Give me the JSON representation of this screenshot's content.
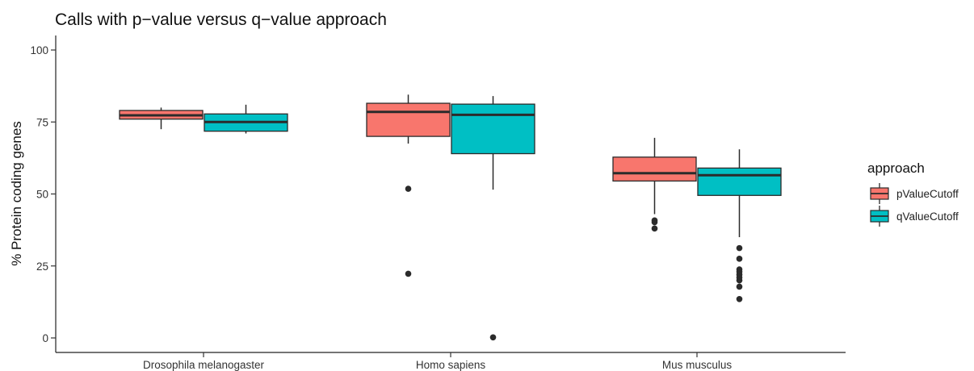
{
  "chart_data": {
    "type": "boxplot",
    "title": "Calls with p−value versus q−value approach",
    "xlabel": "",
    "ylabel": "% Protein coding genes",
    "ylim": [
      0,
      100
    ],
    "yticks": [
      0,
      25,
      50,
      75,
      100
    ],
    "grid": false,
    "categories": [
      "Drosophila melanogaster",
      "Homo sapiens",
      "Mus musculus"
    ],
    "legend": {
      "title": "approach",
      "position": "right"
    },
    "series": [
      {
        "name": "pValueCutoff",
        "color": "#F8766D",
        "boxes": [
          {
            "whisker_low": 72.5,
            "q1": 76,
            "median": 77.3,
            "q3": 79,
            "whisker_high": 80,
            "outliers": []
          },
          {
            "whisker_low": 67.5,
            "q1": 70,
            "median": 78.5,
            "q3": 81.5,
            "whisker_high": 84.5,
            "outliers": [
              51.8,
              22.3
            ]
          },
          {
            "whisker_low": 43,
            "q1": 54.5,
            "median": 57.2,
            "q3": 62.8,
            "whisker_high": 69.5,
            "outliers": [
              40.8,
              40.2,
              38
            ]
          }
        ]
      },
      {
        "name": "qValueCutoff",
        "color": "#00BFC4",
        "boxes": [
          {
            "whisker_low": 71,
            "q1": 71.8,
            "median": 75,
            "q3": 77.8,
            "whisker_high": 81,
            "outliers": []
          },
          {
            "whisker_low": 51.5,
            "q1": 64,
            "median": 77.5,
            "q3": 81.2,
            "whisker_high": 84,
            "outliers": [
              0.2
            ]
          },
          {
            "whisker_low": 35,
            "q1": 49.5,
            "median": 56.5,
            "q3": 59,
            "whisker_high": 65.5,
            "outliers": [
              31.2,
              27.5,
              23.8,
              23,
              22,
              21,
              20,
              17.8,
              13.5
            ]
          }
        ]
      }
    ]
  }
}
